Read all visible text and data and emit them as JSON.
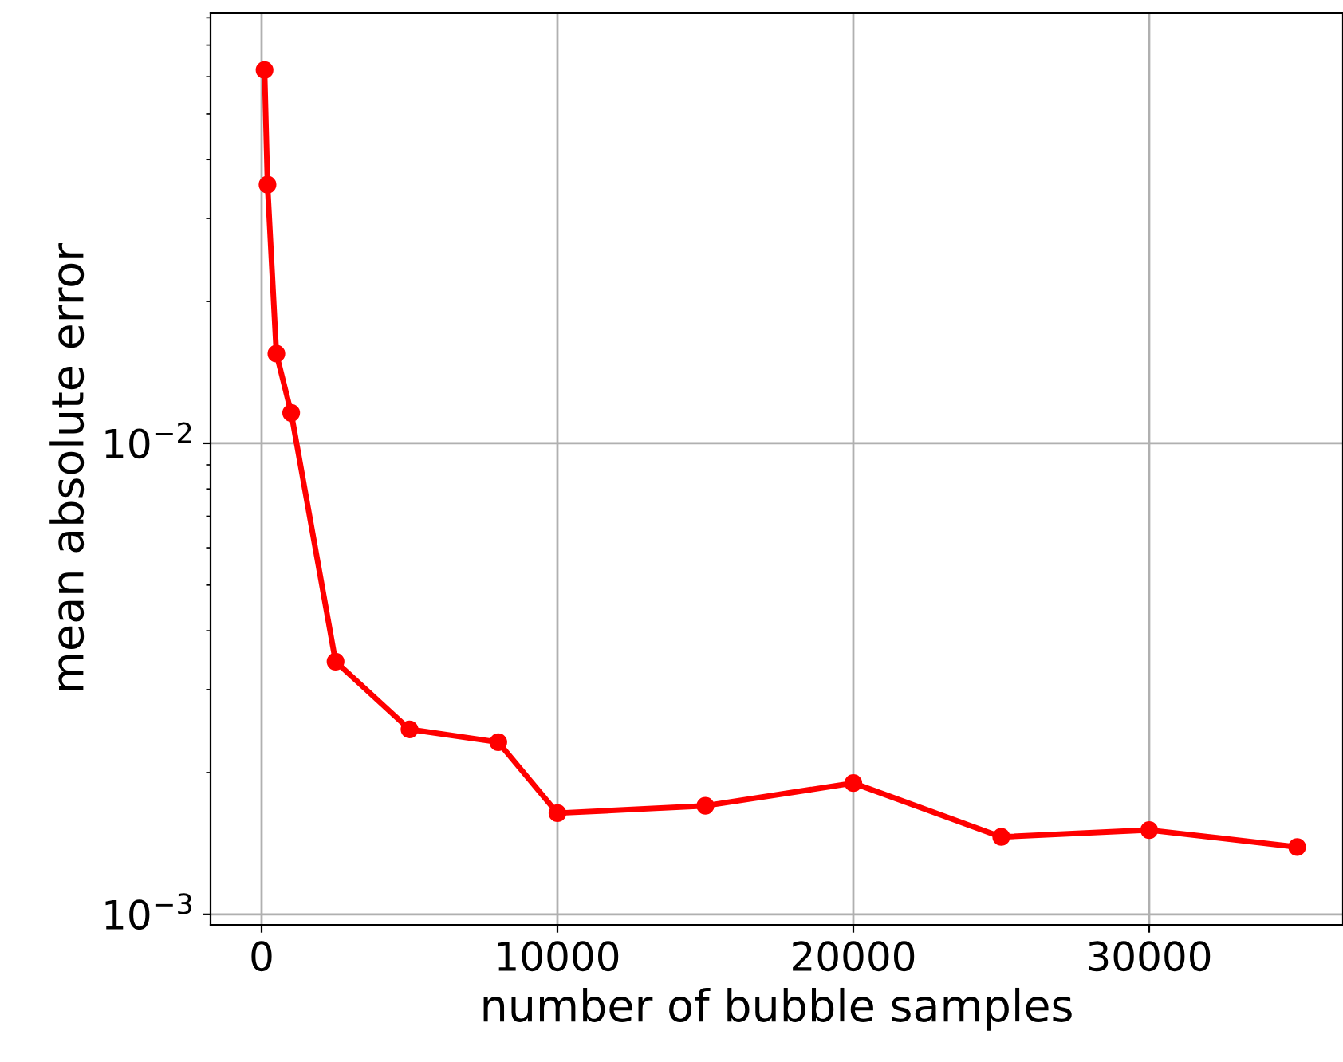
{
  "chart_data": {
    "type": "line",
    "xlabel": "number of bubble samples",
    "ylabel": "mean absolute error",
    "x": [
      100,
      200,
      500,
      1000,
      2500,
      5000,
      8000,
      10000,
      15000,
      20000,
      25000,
      30000,
      35000
    ],
    "series": [
      {
        "color": "#ff0000",
        "values": [
          0.062,
          0.0354,
          0.0155,
          0.0116,
          0.00344,
          0.00247,
          0.00232,
          0.00164,
          0.0017,
          0.0019,
          0.00146,
          0.00151,
          0.00139
        ]
      }
    ],
    "log": "y",
    "xlim": [
      -1725,
      36550
    ],
    "ylim": [
      0.00095,
      0.082
    ],
    "xticks": [
      0,
      10000,
      20000,
      30000
    ],
    "yticks": [
      {
        "value": 0.001,
        "label": "10$^{−3}$"
      },
      {
        "value": 0.01,
        "label": "10$^{−2}$"
      }
    ],
    "grid": true,
    "marker": "circle",
    "line_style": "solid"
  }
}
